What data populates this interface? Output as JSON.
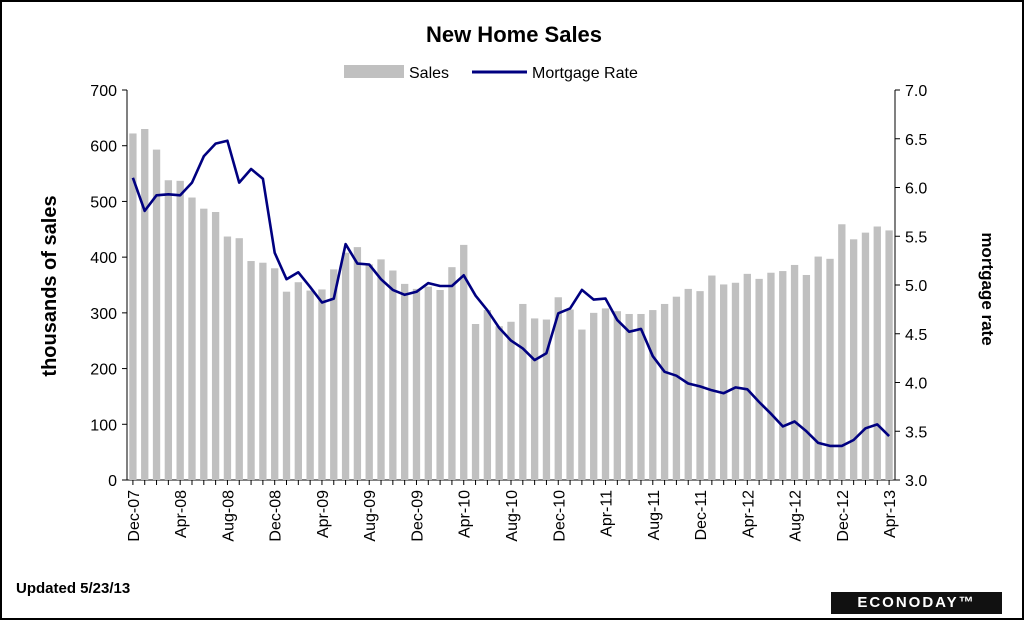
{
  "footer": {
    "updated": "Updated 5/23/13",
    "brand": "ECONODAY™"
  },
  "chart_data": {
    "type": "bar+line",
    "title": "New Home Sales",
    "legend": [
      "Sales",
      "Mortgage Rate"
    ],
    "legend_position": "top-center",
    "ylabel_left": "thousands of sales",
    "ylabel_right": "mortgage rate",
    "ylim_left": [
      0,
      700
    ],
    "ylim_right": [
      3.0,
      7.0
    ],
    "yticks_left": [
      "0",
      "100",
      "200",
      "300",
      "400",
      "500",
      "600",
      "700"
    ],
    "yticks_right": [
      "3.0",
      "3.5",
      "4.0",
      "4.5",
      "5.0",
      "5.5",
      "6.0",
      "6.5",
      "7.0"
    ],
    "xtick_labels": [
      "Dec-07",
      "Apr-08",
      "Aug-08",
      "Dec-08",
      "Apr-09",
      "Aug-09",
      "Dec-09",
      "Apr-10",
      "Aug-10",
      "Dec-10",
      "Apr-11",
      "Aug-11",
      "Dec-11",
      "Apr-12",
      "Aug-12",
      "Dec-12",
      "Apr-13"
    ],
    "colors": {
      "bars": "#c0c0c0",
      "line": "#000080"
    },
    "x": [
      "Dec-07",
      "Jan-08",
      "Feb-08",
      "Mar-08",
      "Apr-08",
      "May-08",
      "Jun-08",
      "Jul-08",
      "Aug-08",
      "Sep-08",
      "Oct-08",
      "Nov-08",
      "Dec-08",
      "Jan-09",
      "Feb-09",
      "Mar-09",
      "Apr-09",
      "May-09",
      "Jun-09",
      "Jul-09",
      "Aug-09",
      "Sep-09",
      "Oct-09",
      "Nov-09",
      "Dec-09",
      "Jan-10",
      "Feb-10",
      "Mar-10",
      "Apr-10",
      "May-10",
      "Jun-10",
      "Jul-10",
      "Aug-10",
      "Sep-10",
      "Oct-10",
      "Nov-10",
      "Dec-10",
      "Jan-11",
      "Feb-11",
      "Mar-11",
      "Apr-11",
      "May-11",
      "Jun-11",
      "Jul-11",
      "Aug-11",
      "Sep-11",
      "Oct-11",
      "Nov-11",
      "Dec-11",
      "Jan-12",
      "Feb-12",
      "Mar-12",
      "Apr-12",
      "May-12",
      "Jun-12",
      "Jul-12",
      "Aug-12",
      "Sep-12",
      "Oct-12",
      "Nov-12",
      "Dec-12",
      "Jan-13",
      "Feb-13",
      "Mar-13",
      "Apr-13"
    ],
    "series": [
      {
        "name": "Sales",
        "axis": "left",
        "values": [
          622,
          630,
          593,
          538,
          537,
          507,
          487,
          481,
          437,
          434,
          393,
          390,
          380,
          338,
          355,
          340,
          342,
          378,
          408,
          418,
          387,
          396,
          376,
          352,
          343,
          347,
          341,
          382,
          422,
          280,
          305,
          276,
          284,
          316,
          290,
          288,
          328,
          306,
          270,
          300,
          308,
          303,
          298,
          298,
          305,
          316,
          329,
          343,
          339,
          367,
          351,
          354,
          370,
          361,
          372,
          375,
          386,
          368,
          401,
          397,
          459,
          432,
          444,
          455,
          448
        ]
      },
      {
        "name": "Mortgage Rate",
        "axis": "right",
        "values": [
          6.1,
          5.76,
          5.92,
          5.93,
          5.92,
          6.05,
          6.32,
          6.45,
          6.48,
          6.05,
          6.19,
          6.09,
          5.33,
          5.06,
          5.13,
          4.98,
          4.82,
          4.86,
          5.42,
          5.22,
          5.21,
          5.06,
          4.95,
          4.9,
          4.93,
          5.02,
          4.99,
          4.99,
          5.1,
          4.89,
          4.74,
          4.56,
          4.43,
          4.35,
          4.23,
          4.3,
          4.71,
          4.76,
          4.95,
          4.85,
          4.86,
          4.64,
          4.52,
          4.55,
          4.27,
          4.11,
          4.07,
          3.99,
          3.96,
          3.92,
          3.89,
          3.95,
          3.93,
          3.8,
          3.68,
          3.55,
          3.6,
          3.5,
          3.38,
          3.35,
          3.35,
          3.41,
          3.53,
          3.57,
          3.45
        ]
      }
    ]
  }
}
